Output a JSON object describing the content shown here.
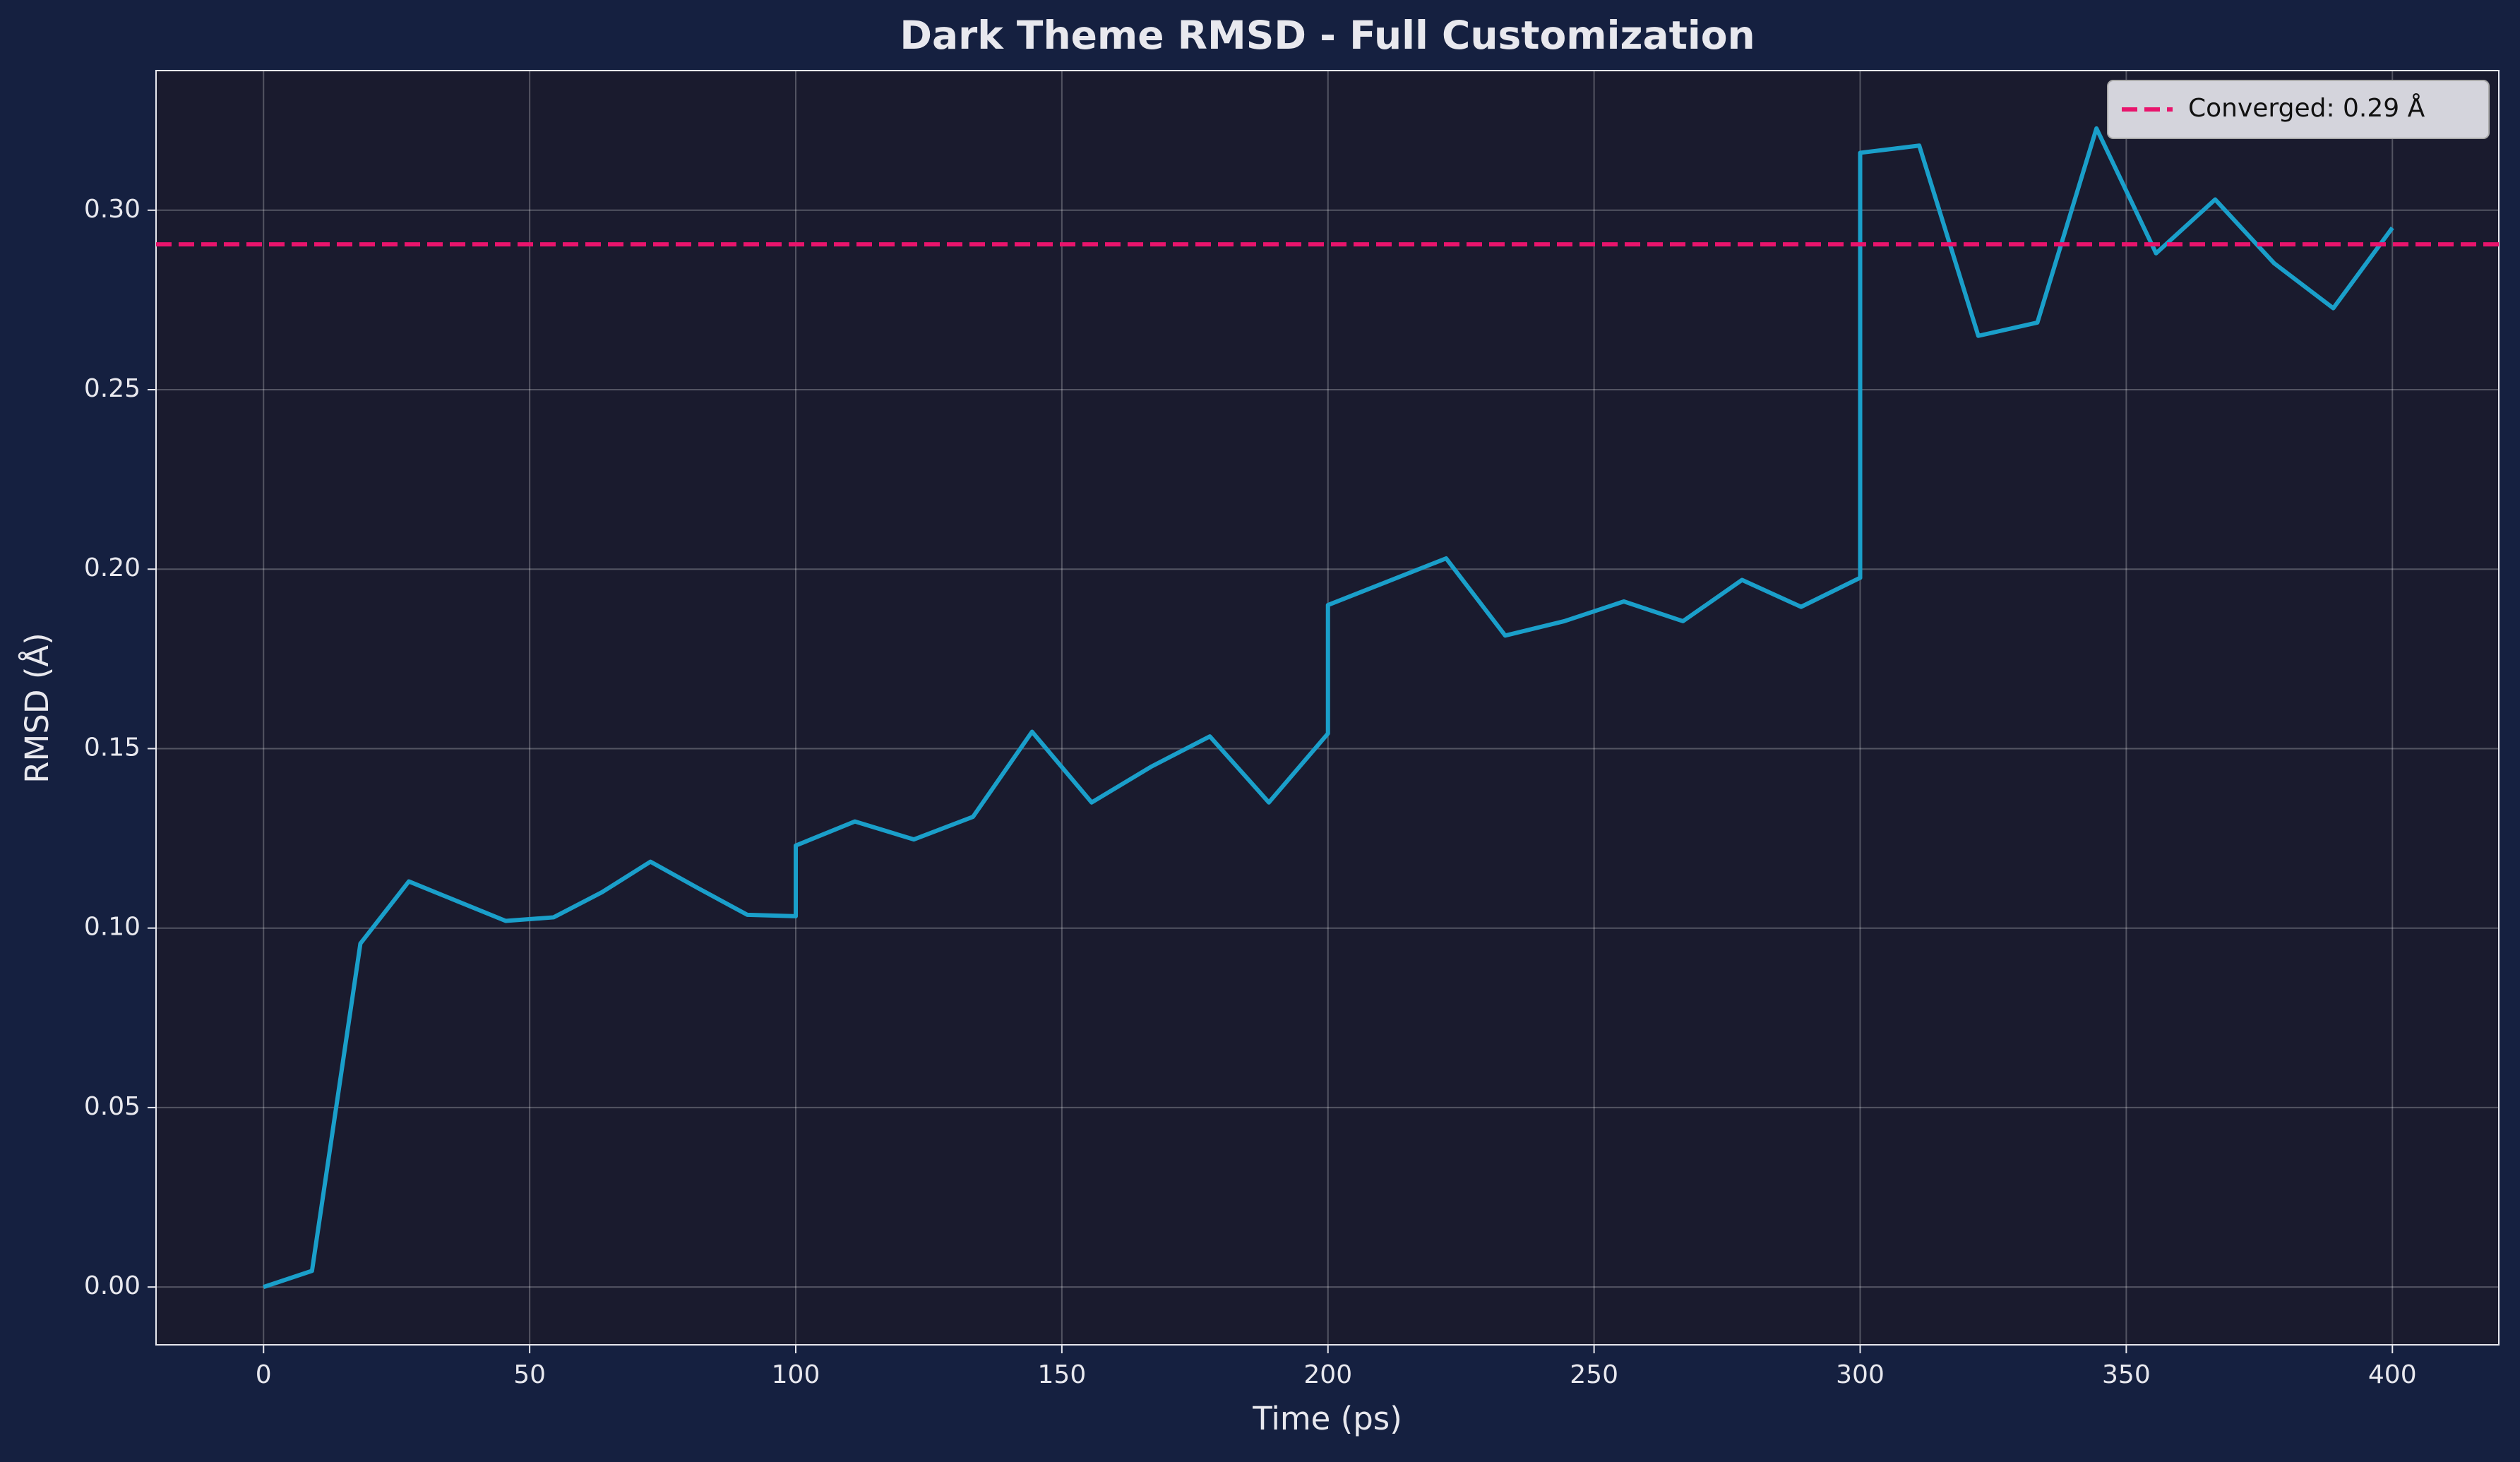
{
  "chart_data": {
    "type": "line",
    "title": "Dark Theme RMSD - Full Customization",
    "x_label": "Time (ps)",
    "y_label": "RMSD (Å)",
    "x": [
      0,
      9.1,
      18.2,
      27.3,
      36.4,
      45.5,
      54.5,
      63.6,
      72.7,
      81.8,
      90.9,
      100,
      100,
      111.1,
      122.2,
      133.3,
      144.4,
      155.6,
      166.7,
      177.8,
      188.9,
      200,
      200,
      211.1,
      222.2,
      233.3,
      244.4,
      255.6,
      266.7,
      277.8,
      288.9,
      300,
      300,
      311.1,
      322.2,
      333.3,
      344.4,
      355.6,
      366.7,
      377.8,
      388.9,
      400
    ],
    "series": [
      {
        "color": "#1a9fca",
        "values": [
          0,
          0.0045,
          0.0957,
          0.113,
          0.1075,
          0.102,
          0.103,
          0.11,
          0.1185,
          0.111,
          0.1037,
          0.1033,
          0.123,
          0.1297,
          0.1247,
          0.131,
          0.1547,
          0.135,
          0.1449,
          0.1534,
          0.135,
          0.1542,
          0.19,
          0.1965,
          0.203,
          0.1815,
          0.1855,
          0.191,
          0.1855,
          0.197,
          0.1895,
          0.1976,
          0.316,
          0.318,
          0.265,
          0.2687,
          0.3228,
          0.288,
          0.303,
          0.2852,
          0.2727,
          0.2951
        ]
      }
    ],
    "hlines": [
      {
        "value": 0.2905,
        "label": "Converged: 0.29 Å",
        "color": "#e8146c"
      }
    ],
    "xlim": [
      -20.2,
      420
    ],
    "ylim": [
      -0.0161,
      0.3389
    ],
    "xticks": [
      0,
      50,
      100,
      150,
      200,
      250,
      300,
      350,
      400
    ],
    "yticks": [
      {
        "value": 0,
        "label": "0.00"
      },
      {
        "value": 0.05,
        "label": "0.05"
      },
      {
        "value": 0.1,
        "label": "0.10"
      },
      {
        "value": 0.15,
        "label": "0.15"
      },
      {
        "value": 0.2,
        "label": "0.20"
      },
      {
        "value": 0.25,
        "label": "0.25"
      },
      {
        "value": 0.3,
        "label": "0.30"
      }
    ],
    "grid": true,
    "legend": "upper right"
  }
}
